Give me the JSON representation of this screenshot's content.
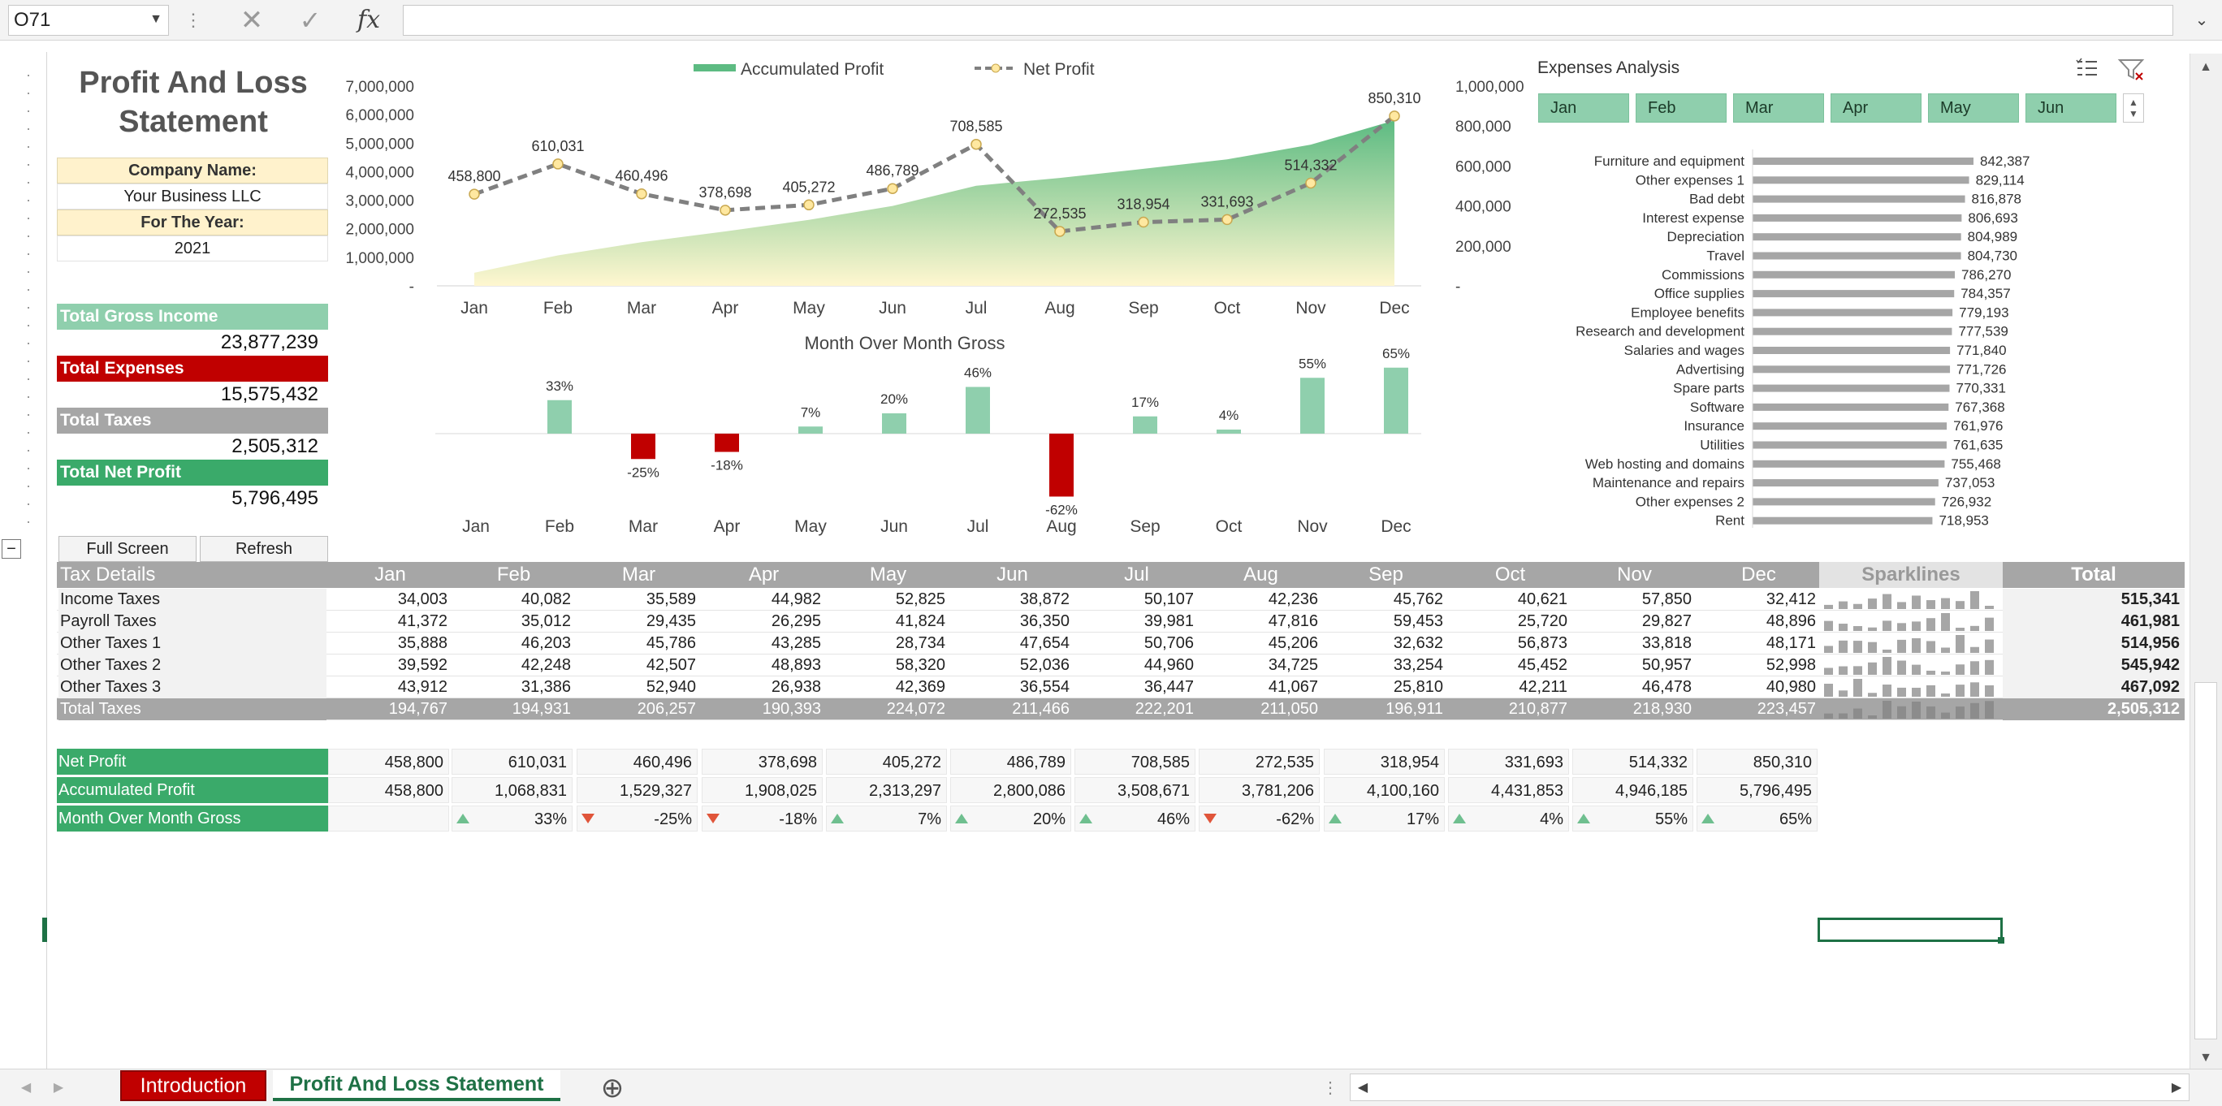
{
  "formula_bar": {
    "name_box": "O71",
    "formula": ""
  },
  "dashboard": {
    "title_line1": "Profit And Loss",
    "title_line2": "Statement",
    "company_label": "Company Name:",
    "company_value": "Your Business LLC",
    "year_label": "For The Year:",
    "year_value": "2021",
    "totals": [
      {
        "label": "Total Gross Income",
        "value": "23,877,239",
        "color": "#8fcfad"
      },
      {
        "label": "Total Expenses",
        "value": "15,575,432",
        "color": "#c00000"
      },
      {
        "label": "Total Taxes",
        "value": "2,505,312",
        "color": "#a6a6a6"
      },
      {
        "label": "Total Net Profit",
        "value": "5,796,495",
        "color": "#3aaa6a"
      }
    ],
    "buttons": {
      "full_screen": "Full Screen",
      "refresh": "Refresh"
    }
  },
  "chart_data": [
    {
      "type": "line",
      "categories": [
        "Jan",
        "Feb",
        "Mar",
        "Apr",
        "May",
        "Jun",
        "Jul",
        "Aug",
        "Sep",
        "Oct",
        "Nov",
        "Dec"
      ],
      "series": [
        {
          "name": "Accumulated Profit",
          "kind": "area",
          "axis": "left",
          "values": [
            458800,
            1068831,
            1529327,
            1908025,
            2313297,
            2800086,
            3508671,
            3781206,
            4100160,
            4431853,
            4946185,
            5796495
          ],
          "color": "#5dbb82"
        },
        {
          "name": "Net Profit",
          "kind": "line",
          "axis": "right",
          "values": [
            458800,
            610031,
            460496,
            378698,
            405272,
            486789,
            708585,
            272535,
            318954,
            331693,
            514332,
            850310
          ],
          "data_labels": [
            "458,800",
            "610,031",
            "460,496",
            "378,698",
            "405,272",
            "486,789",
            "708,585",
            "272,535",
            "318,954",
            "331,693",
            "514,332",
            "850,310"
          ],
          "color": "#808080"
        }
      ],
      "left_ticks": [
        "7,000,000",
        "6,000,000",
        "5,000,000",
        "4,000,000",
        "3,000,000",
        "2,000,000",
        "1,000,000",
        "-"
      ],
      "right_ticks": [
        "1,000,000",
        "800,000",
        "600,000",
        "400,000",
        "200,000",
        "-"
      ],
      "ylim_left": [
        0,
        7000000
      ],
      "ylim_right": [
        0,
        1000000
      ],
      "legend_position": "top"
    },
    {
      "type": "bar",
      "title": "Month Over Month Gross",
      "categories": [
        "Jan",
        "Feb",
        "Mar",
        "Apr",
        "May",
        "Jun",
        "Jul",
        "Aug",
        "Sep",
        "Oct",
        "Nov",
        "Dec"
      ],
      "values": [
        null,
        33,
        -25,
        -18,
        7,
        20,
        46,
        -62,
        17,
        4,
        55,
        65
      ],
      "data_labels": [
        "",
        "33%",
        "-25%",
        "-18%",
        "7%",
        "20%",
        "46%",
        "-62%",
        "17%",
        "4%",
        "55%",
        "65%"
      ],
      "positive_color": "#8fcfad",
      "negative_color": "#c00000"
    },
    {
      "type": "bar",
      "orientation": "horizontal",
      "title": "Expenses Analysis",
      "categories": [
        "Furniture and equipment",
        "Other expenses 1",
        "Bad debt",
        "Interest expense",
        "Depreciation",
        "Travel",
        "Commissions",
        "Office supplies",
        "Employee benefits",
        "Research and development",
        "Salaries and wages",
        "Advertising",
        "Spare parts",
        "Software",
        "Insurance",
        "Utilities",
        "Web hosting and domains",
        "Maintenance and repairs",
        "Other expenses 2",
        "Rent"
      ],
      "values": [
        842387,
        829114,
        816878,
        806693,
        804989,
        804730,
        786270,
        784357,
        779193,
        777539,
        771840,
        771726,
        770331,
        767368,
        761976,
        761635,
        755468,
        737053,
        726932,
        718953
      ],
      "data_labels": [
        "842,387",
        "829,114",
        "816,878",
        "806,693",
        "804,989",
        "804,730",
        "786,270",
        "784,357",
        "779,193",
        "777,539",
        "771,840",
        "771,726",
        "770,331",
        "767,368",
        "761,976",
        "761,635",
        "755,468",
        "737,053",
        "726,932",
        "718,953"
      ],
      "color": "#a6a6a6"
    }
  ],
  "expenses_slicer": [
    "Jan",
    "Feb",
    "Mar",
    "Apr",
    "May",
    "Jun"
  ],
  "tax_table": {
    "header": "Tax Details",
    "months": [
      "Jan",
      "Feb",
      "Mar",
      "Apr",
      "May",
      "Jun",
      "Jul",
      "Aug",
      "Sep",
      "Oct",
      "Nov",
      "Dec"
    ],
    "sparklines_label": "Sparklines",
    "total_label": "Total",
    "rows": [
      {
        "label": "Income Taxes",
        "values": [
          "34,003",
          "40,082",
          "35,589",
          "44,982",
          "52,825",
          "38,872",
          "50,107",
          "42,236",
          "45,762",
          "40,621",
          "57,850",
          "32,412"
        ],
        "raw": [
          34003,
          40082,
          35589,
          44982,
          52825,
          38872,
          50107,
          42236,
          45762,
          40621,
          57850,
          32412
        ],
        "total": "515,341"
      },
      {
        "label": "Payroll Taxes",
        "values": [
          "41,372",
          "35,012",
          "29,435",
          "26,295",
          "41,824",
          "36,350",
          "39,981",
          "47,816",
          "59,453",
          "25,720",
          "29,827",
          "48,896"
        ],
        "raw": [
          41372,
          35012,
          29435,
          26295,
          41824,
          36350,
          39981,
          47816,
          59453,
          25720,
          29827,
          48896
        ],
        "total": "461,981"
      },
      {
        "label": "Other Taxes 1",
        "values": [
          "35,888",
          "46,203",
          "45,786",
          "43,285",
          "28,734",
          "47,654",
          "50,706",
          "45,206",
          "32,632",
          "56,873",
          "33,818",
          "48,171"
        ],
        "raw": [
          35888,
          46203,
          45786,
          43285,
          28734,
          47654,
          50706,
          45206,
          32632,
          56873,
          33818,
          48171
        ],
        "total": "514,956"
      },
      {
        "label": "Other Taxes 2",
        "values": [
          "39,592",
          "42,248",
          "42,507",
          "48,893",
          "58,320",
          "52,036",
          "44,960",
          "34,725",
          "33,254",
          "45,452",
          "50,957",
          "52,998"
        ],
        "raw": [
          39592,
          42248,
          42507,
          48893,
          58320,
          52036,
          44960,
          34725,
          33254,
          45452,
          50957,
          52998
        ],
        "total": "545,942"
      },
      {
        "label": "Other Taxes 3",
        "values": [
          "43,912",
          "31,386",
          "52,940",
          "26,938",
          "42,369",
          "36,554",
          "36,447",
          "41,067",
          "25,810",
          "42,211",
          "46,478",
          "40,980"
        ],
        "raw": [
          43912,
          31386,
          52940,
          26938,
          42369,
          36554,
          36447,
          41067,
          25810,
          42211,
          46478,
          40980
        ],
        "total": "467,092"
      }
    ],
    "total_row": {
      "label": "Total Taxes",
      "values": [
        "194,767",
        "194,931",
        "206,257",
        "190,393",
        "224,072",
        "211,466",
        "222,201",
        "211,050",
        "196,911",
        "210,877",
        "218,930",
        "223,457"
      ],
      "raw": [
        194767,
        194931,
        206257,
        190393,
        224072,
        211466,
        222201,
        211050,
        196911,
        210877,
        218930,
        223457
      ],
      "total": "2,505,312"
    }
  },
  "profit_table": {
    "rows": [
      {
        "label": "Net Profit",
        "values": [
          "458,800",
          "610,031",
          "460,496",
          "378,698",
          "405,272",
          "486,789",
          "708,585",
          "272,535",
          "318,954",
          "331,693",
          "514,332",
          "850,310"
        ]
      },
      {
        "label": "Accumulated Profit",
        "values": [
          "458,800",
          "1,068,831",
          "1,529,327",
          "1,908,025",
          "2,313,297",
          "2,800,086",
          "3,508,671",
          "3,781,206",
          "4,100,160",
          "4,431,853",
          "4,946,185",
          "5,796,495"
        ]
      }
    ],
    "mom_label": "Month Over Month Gross",
    "mom_values": [
      "",
      "33%",
      "-25%",
      "-18%",
      "7%",
      "20%",
      "46%",
      "-62%",
      "17%",
      "4%",
      "55%",
      "65%"
    ]
  },
  "sheet_tabs": [
    {
      "label": "Introduction",
      "active": false,
      "color": "#c00000"
    },
    {
      "label": "Profit And Loss Statement",
      "active": true,
      "color": "#1e7145"
    }
  ],
  "icons": {
    "name_box_arrow": "chevron-down",
    "cancel": "✕",
    "enter": "✓",
    "fx": "fx",
    "expand": "chevron-down",
    "add_sheet": "⊕",
    "collapse": "−"
  }
}
